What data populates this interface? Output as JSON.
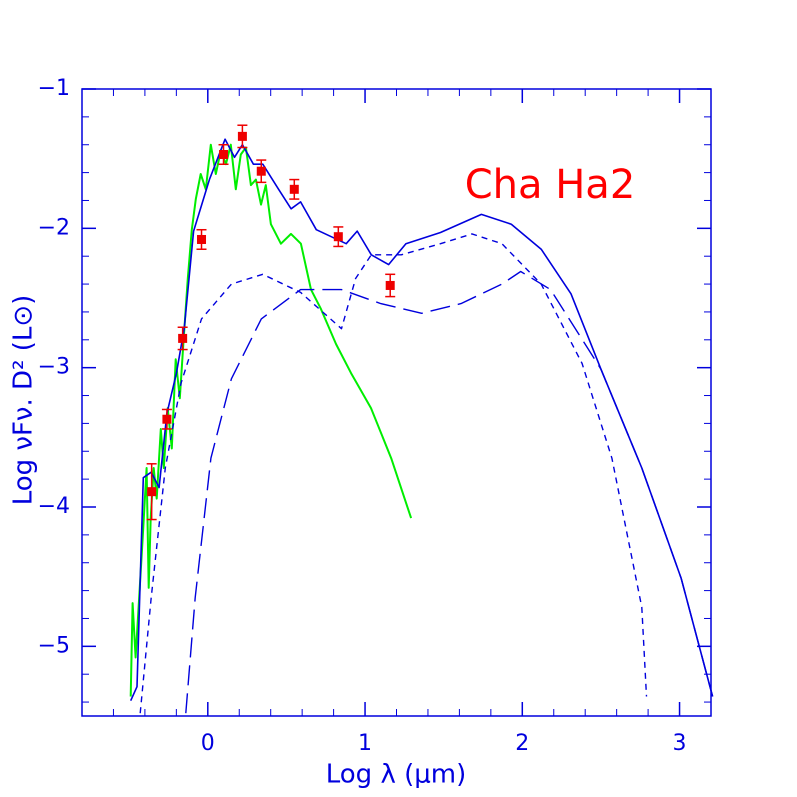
{
  "chart_data": {
    "type": "sed",
    "annotation": "Cha Ha2",
    "annotation_color": "#ff0000",
    "xlabel": "Log λ (μm)",
    "ylabel": "Log νFν. D² (L⊙)",
    "axis_color": "#0000dd",
    "xlim": [
      -0.8,
      3.2
    ],
    "ylim": [
      -5.5,
      -1
    ],
    "xticks": [
      0,
      1,
      2,
      3
    ],
    "yticks": [
      {
        "value": -1,
        "label": "−1"
      },
      {
        "value": -2,
        "label": "−2"
      },
      {
        "value": -3,
        "label": "−3"
      },
      {
        "value": -4,
        "label": "−4"
      },
      {
        "value": -5,
        "label": "−5"
      }
    ],
    "xminorticks": [
      -0.6,
      -0.4,
      -0.2,
      0.2,
      0.4,
      0.6,
      0.8,
      1.2,
      1.4,
      1.6,
      1.8,
      2.2,
      2.4,
      2.6,
      2.8,
      3.2
    ],
    "yminorticks": [
      -1.2,
      -1.4,
      -1.6,
      -1.8,
      -2.2,
      -2.4,
      -2.6,
      -2.8,
      -3.2,
      -3.4,
      -3.6,
      -3.8,
      -4.2,
      -4.4,
      -4.6,
      -4.8,
      -5.2,
      -5.4
    ],
    "series": [
      {
        "color": "#00ee00",
        "dash": "solid",
        "width": 2,
        "x": [
          -0.49,
          -0.478,
          -0.459,
          -0.44,
          -0.414,
          -0.389,
          -0.376,
          -0.363,
          -0.344,
          -0.325,
          -0.299,
          -0.28,
          -0.255,
          -0.229,
          -0.204,
          -0.178,
          -0.153,
          -0.127,
          -0.102,
          -0.076,
          -0.045,
          -0.013,
          0.019,
          0.051,
          0.083,
          0.115,
          0.146,
          0.178,
          0.21,
          0.242,
          0.274,
          0.306,
          0.338,
          0.369,
          0.401,
          0.465,
          0.529,
          0.592,
          0.656,
          0.72,
          0.815,
          0.911,
          1.038,
          1.166,
          1.293
        ],
        "values": [
          -5.36,
          -4.69,
          -5.08,
          -4.72,
          -4.22,
          -3.72,
          -4.58,
          -4.08,
          -3.72,
          -3.94,
          -3.44,
          -3.72,
          -3.29,
          -3.58,
          -2.94,
          -3.22,
          -2.79,
          -2.36,
          -2.01,
          -1.79,
          -1.61,
          -1.72,
          -1.4,
          -1.61,
          -1.44,
          -1.54,
          -1.4,
          -1.72,
          -1.47,
          -1.42,
          -1.69,
          -1.65,
          -1.83,
          -1.69,
          -1.97,
          -2.11,
          -2.04,
          -2.11,
          -2.44,
          -2.58,
          -2.83,
          -3.04,
          -3.29,
          -3.65,
          -4.08
        ]
      },
      {
        "color": "#0000dd",
        "dash": "solid",
        "width": 1.6,
        "x": [
          -0.49,
          -0.45,
          -0.41,
          -0.36,
          -0.31,
          -0.26,
          -0.2,
          -0.15,
          -0.09,
          0.01,
          0.11,
          0.17,
          0.22,
          0.29,
          0.35,
          0.45,
          0.53,
          0.59,
          0.69,
          0.88,
          0.95,
          1.04,
          1.15,
          1.26,
          1.48,
          1.74,
          1.93,
          2.12,
          2.31,
          2.5,
          2.76,
          3.01,
          3.21
        ],
        "values": [
          -5.39,
          -5.29,
          -3.79,
          -3.75,
          -3.86,
          -3.33,
          -3.04,
          -2.72,
          -2.02,
          -1.65,
          -1.36,
          -1.49,
          -1.4,
          -1.54,
          -1.54,
          -1.72,
          -1.86,
          -1.81,
          -2.01,
          -2.11,
          -2.02,
          -2.19,
          -2.26,
          -2.11,
          -2.03,
          -1.9,
          -1.97,
          -2.15,
          -2.47,
          -3.01,
          -3.72,
          -4.51,
          -5.36
        ]
      },
      {
        "color": "#0000dd",
        "dash": "short",
        "width": 1.4,
        "x": [
          -0.43,
          -0.36,
          -0.27,
          -0.17,
          -0.04,
          0.15,
          0.35,
          0.59,
          0.85,
          0.94,
          1.04,
          1.23,
          1.48,
          1.68,
          1.87,
          2.12,
          2.38,
          2.57,
          2.76,
          2.79
        ],
        "values": [
          -5.48,
          -4.65,
          -3.72,
          -3.11,
          -2.65,
          -2.4,
          -2.33,
          -2.46,
          -2.72,
          -2.36,
          -2.19,
          -2.19,
          -2.11,
          -2.04,
          -2.11,
          -2.4,
          -2.97,
          -3.65,
          -4.72,
          -5.36
        ]
      },
      {
        "color": "#0000dd",
        "dash": "long",
        "width": 1.4,
        "x": [
          -0.14,
          -0.08,
          0.02,
          0.15,
          0.34,
          0.59,
          0.85,
          1.1,
          1.36,
          1.61,
          1.87,
          1.99,
          2.18,
          2.5,
          2.76,
          3.01,
          3.21
        ],
        "values": [
          -5.48,
          -4.65,
          -3.65,
          -3.08,
          -2.65,
          -2.44,
          -2.44,
          -2.54,
          -2.61,
          -2.54,
          -2.4,
          -2.31,
          -2.44,
          -3.01,
          -3.72,
          -4.51,
          -5.36
        ]
      }
    ],
    "points": {
      "color": "#ee0000",
      "x": [
        -0.357,
        -0.26,
        -0.16,
        -0.04,
        0.1,
        0.22,
        0.34,
        0.55,
        0.83,
        1.16
      ],
      "values": [
        -3.89,
        -3.37,
        -2.79,
        -2.08,
        -1.47,
        -1.34,
        -1.59,
        -1.72,
        -2.06,
        -2.41
      ],
      "yerr": [
        0.2,
        0.07,
        0.08,
        0.07,
        0.07,
        0.08,
        0.08,
        0.07,
        0.07,
        0.08
      ]
    }
  }
}
